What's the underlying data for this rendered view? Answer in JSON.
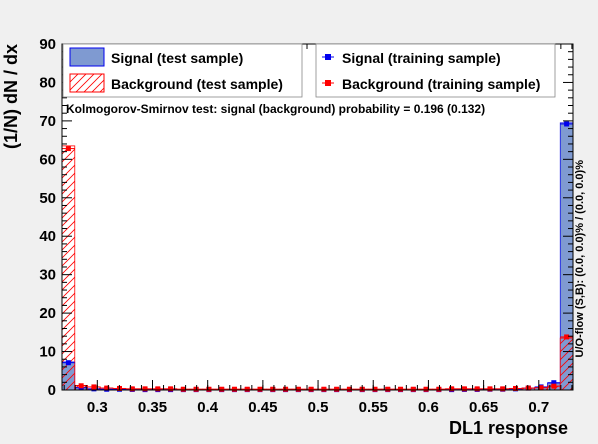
{
  "chart_data": {
    "type": "bar",
    "xlabel": "DL1 response",
    "ylabel": "(1/N) dN / dx",
    "xlim": [
      0.268,
      0.731
    ],
    "ylim": [
      0,
      90
    ],
    "x_ticks": [
      0.3,
      0.35,
      0.4,
      0.45,
      0.5,
      0.55,
      0.6,
      0.65,
      0.7
    ],
    "x_tick_labels": [
      "0.3",
      "0.35",
      "0.4",
      "0.45",
      "0.5",
      "0.55",
      "0.6",
      "0.65",
      "0.7"
    ],
    "y_ticks": [
      0,
      10,
      20,
      30,
      40,
      50,
      60,
      70,
      80,
      90
    ],
    "y_tick_labels": [
      "0",
      "10",
      "20",
      "30",
      "40",
      "50",
      "60",
      "70",
      "80",
      "90"
    ],
    "n_bins": 40,
    "annotation": "Kolmogorov-Smirnov test: signal (background) probability = 0.196 (0.132)",
    "side_label": "U/O-flow (S,B): (0.0, 0.0)% / (0.0, 0.0)%",
    "legend": {
      "signal_test": "Signal (test sample)",
      "background_test": "Background (test sample)",
      "signal_train": "Signal (training sample)",
      "background_train": "Background (training sample)"
    },
    "colors": {
      "signal_fill": "#7f9ad1",
      "signal_line": "#0000ee",
      "background_line": "#ff0000",
      "frame_bg": "#ffffff"
    },
    "series": [
      {
        "name": "Signal (test sample)",
        "values": [
          7.3,
          0.6,
          0.3,
          0.2,
          0.2,
          0.15,
          0.1,
          0.1,
          0.1,
          0.1,
          0.1,
          0.1,
          0.1,
          0.1,
          0.1,
          0.1,
          0.1,
          0.1,
          0.1,
          0.1,
          0.1,
          0.1,
          0.1,
          0.1,
          0.1,
          0.1,
          0.1,
          0.1,
          0.1,
          0.1,
          0.1,
          0.15,
          0.15,
          0.2,
          0.2,
          0.3,
          0.5,
          0.7,
          1.8,
          69.5
        ]
      },
      {
        "name": "Background (test sample)",
        "values": [
          63.5,
          1.2,
          0.8,
          0.5,
          0.4,
          0.3,
          0.3,
          0.3,
          0.3,
          0.2,
          0.2,
          0.2,
          0.2,
          0.2,
          0.2,
          0.2,
          0.2,
          0.2,
          0.2,
          0.2,
          0.2,
          0.2,
          0.2,
          0.2,
          0.2,
          0.2,
          0.2,
          0.2,
          0.2,
          0.2,
          0.3,
          0.3,
          0.3,
          0.3,
          0.3,
          0.4,
          0.5,
          0.6,
          1.0,
          13.5
        ]
      },
      {
        "name": "Signal (training sample)",
        "values": [
          7.1,
          0.6,
          0.3,
          0.2,
          0.2,
          0.15,
          0.1,
          0.1,
          0.1,
          0.1,
          0.1,
          0.1,
          0.1,
          0.1,
          0.1,
          0.1,
          0.1,
          0.1,
          0.1,
          0.1,
          0.1,
          0.1,
          0.1,
          0.1,
          0.1,
          0.1,
          0.1,
          0.1,
          0.1,
          0.1,
          0.1,
          0.15,
          0.15,
          0.2,
          0.2,
          0.3,
          0.5,
          0.8,
          1.9,
          69.2
        ]
      },
      {
        "name": "Background (training sample)",
        "values": [
          62.8,
          1.1,
          0.8,
          0.5,
          0.4,
          0.3,
          0.3,
          0.3,
          0.3,
          0.2,
          0.2,
          0.2,
          0.2,
          0.2,
          0.2,
          0.2,
          0.2,
          0.2,
          0.2,
          0.2,
          0.2,
          0.2,
          0.2,
          0.2,
          0.2,
          0.2,
          0.2,
          0.2,
          0.2,
          0.2,
          0.3,
          0.3,
          0.3,
          0.3,
          0.3,
          0.4,
          0.5,
          0.6,
          1.0,
          13.8
        ]
      }
    ]
  }
}
